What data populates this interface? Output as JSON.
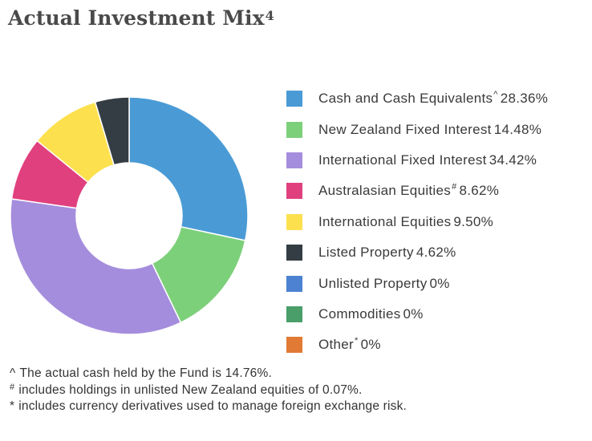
{
  "title": {
    "text": "Actual Investment Mix",
    "superscript": "4"
  },
  "chart_data": {
    "type": "pie",
    "donut": true,
    "title": "Actual Investment Mix",
    "unit": "%",
    "legend_placement": "right",
    "slices": [
      {
        "label": "Cash and Cash Equivalents",
        "marker": "^",
        "value": 28.36,
        "display": "28.36%",
        "color": "#4a9bd5"
      },
      {
        "label": "New Zealand Fixed Interest",
        "marker": "",
        "value": 14.48,
        "display": "14.48%",
        "color": "#7dd07a"
      },
      {
        "label": "International Fixed Interest",
        "marker": "",
        "value": 34.42,
        "display": "34.42%",
        "color": "#a58ddd"
      },
      {
        "label": "Australasian Equities",
        "marker": "#",
        "value": 8.62,
        "display": "8.62%",
        "color": "#e0407e"
      },
      {
        "label": "International Equities",
        "marker": "",
        "value": 9.5,
        "display": "9.50%",
        "color": "#fde04e"
      },
      {
        "label": "Listed Property",
        "marker": "",
        "value": 4.62,
        "display": "4.62%",
        "color": "#343d44"
      },
      {
        "label": "Unlisted Property",
        "marker": "",
        "value": 0,
        "display": "0%",
        "color": "#4c82d1"
      },
      {
        "label": "Commodities",
        "marker": "",
        "value": 0,
        "display": "0%",
        "color": "#4a9e6a"
      },
      {
        "label": "Other",
        "marker": "*",
        "value": 0,
        "display": "0%",
        "color": "#e07a35"
      }
    ]
  },
  "footnotes": [
    {
      "mark": "^",
      "text": "The actual cash held by the Fund is 14.76%."
    },
    {
      "mark": "#",
      "text": "includes holdings in unlisted New Zealand equities of 0.07%."
    },
    {
      "mark": "*",
      "text": "includes currency derivatives used to manage foreign exchange risk."
    }
  ]
}
